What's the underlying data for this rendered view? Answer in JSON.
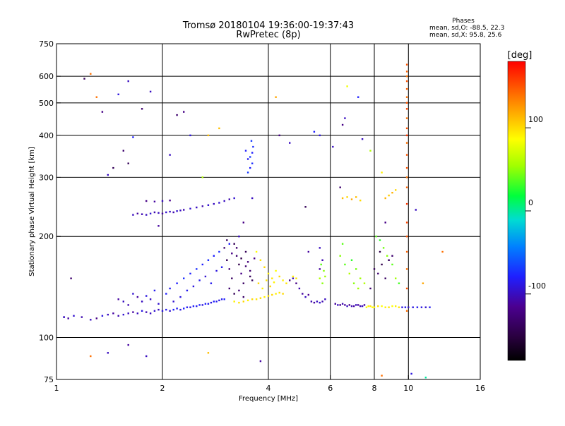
{
  "chart_data": {
    "type": "scatter",
    "title": "Tromsø 20180104 19:36:00-19:37:43",
    "subtitle": "RwPretec (8p)",
    "xlabel": "Frequency [MHz]",
    "ylabel": "Stationary phase Virtual Height [km]",
    "x_scale": "log",
    "y_scale": "log",
    "xlim": [
      1,
      16
    ],
    "ylim": [
      75,
      750
    ],
    "x_ticks": [
      1,
      2,
      4,
      6,
      8,
      10,
      16
    ],
    "x_tick_labels": [
      "1",
      "2",
      "4",
      "6",
      "8",
      "10",
      "16"
    ],
    "y_ticks": [
      75,
      100,
      200,
      300,
      400,
      500,
      600,
      750
    ],
    "y_tick_labels": [
      "75",
      "100",
      "200",
      "300",
      "400",
      "500",
      "600",
      "750"
    ],
    "x_gridlines": [
      2,
      4,
      6,
      8,
      10
    ],
    "y_gridlines": [
      100,
      200,
      300,
      400,
      500,
      600
    ],
    "stats": {
      "heading": "Phases",
      "line1": "mean, sd,O: -88.5, 22.3",
      "line2": "mean, sd,X:  95.8, 25.6"
    },
    "colorbar": {
      "title": "[deg]",
      "range": [
        -180,
        180
      ],
      "tick_values": [
        100,
        0,
        -100
      ],
      "tick_labels": [
        "100",
        "0",
        "-100"
      ]
    },
    "points": [
      [
        1.05,
        115,
        -100
      ],
      [
        1.08,
        114,
        -110
      ],
      [
        1.12,
        116,
        -95
      ],
      [
        1.18,
        115,
        -105
      ],
      [
        1.25,
        113,
        -100
      ],
      [
        1.3,
        114,
        -120
      ],
      [
        1.35,
        116,
        -90
      ],
      [
        1.4,
        117,
        -100
      ],
      [
        1.45,
        118,
        -110
      ],
      [
        1.5,
        116,
        -105
      ],
      [
        1.55,
        117,
        -95
      ],
      [
        1.6,
        118,
        -100
      ],
      [
        1.65,
        119,
        -110
      ],
      [
        1.7,
        118,
        -100
      ],
      [
        1.75,
        120,
        -90
      ],
      [
        1.8,
        119,
        -105
      ],
      [
        1.85,
        118,
        -100
      ],
      [
        1.9,
        120,
        -95
      ],
      [
        1.95,
        121,
        -100
      ],
      [
        2.0,
        120,
        -90
      ],
      [
        2.05,
        121,
        -85
      ],
      [
        2.1,
        120,
        -95
      ],
      [
        2.15,
        121,
        -80
      ],
      [
        2.2,
        122,
        -85
      ],
      [
        2.25,
        121,
        -90
      ],
      [
        2.3,
        122,
        -80
      ],
      [
        2.35,
        123,
        -85
      ],
      [
        2.4,
        123,
        -90
      ],
      [
        2.45,
        124,
        -80
      ],
      [
        2.5,
        124,
        -85
      ],
      [
        2.55,
        125,
        -80
      ],
      [
        2.6,
        125,
        -90
      ],
      [
        2.65,
        126,
        -80
      ],
      [
        2.7,
        126,
        -85
      ],
      [
        2.75,
        127,
        -90
      ],
      [
        2.8,
        128,
        -80
      ],
      [
        2.85,
        128,
        -85
      ],
      [
        2.9,
        129,
        -90
      ],
      [
        2.95,
        130,
        -85
      ],
      [
        3.0,
        130,
        -80
      ],
      [
        1.5,
        130,
        -110
      ],
      [
        1.55,
        128,
        -100
      ],
      [
        1.6,
        125,
        -105
      ],
      [
        1.65,
        135,
        -95
      ],
      [
        1.7,
        132,
        -110
      ],
      [
        1.75,
        128,
        -100
      ],
      [
        1.8,
        133,
        -90
      ],
      [
        1.85,
        130,
        -100
      ],
      [
        1.9,
        138,
        -85
      ],
      [
        1.95,
        126,
        -95
      ],
      [
        2.05,
        135,
        -80
      ],
      [
        2.1,
        140,
        -85
      ],
      [
        2.15,
        128,
        -95
      ],
      [
        2.2,
        145,
        -80
      ],
      [
        2.25,
        132,
        -90
      ],
      [
        2.3,
        150,
        -75
      ],
      [
        2.35,
        138,
        -85
      ],
      [
        2.4,
        155,
        -80
      ],
      [
        2.45,
        142,
        -90
      ],
      [
        2.5,
        160,
        -75
      ],
      [
        2.55,
        148,
        -85
      ],
      [
        2.6,
        165,
        -80
      ],
      [
        2.65,
        152,
        -95
      ],
      [
        2.7,
        170,
        -75
      ],
      [
        2.75,
        145,
        -85
      ],
      [
        2.8,
        175,
        -80
      ],
      [
        2.85,
        158,
        -90
      ],
      [
        2.9,
        180,
        -75
      ],
      [
        2.95,
        162,
        -85
      ],
      [
        3.0,
        185,
        -130
      ],
      [
        3.05,
        170,
        -140
      ],
      [
        3.1,
        160,
        -125
      ],
      [
        3.15,
        150,
        -135
      ],
      [
        3.2,
        190,
        -140
      ],
      [
        3.25,
        175,
        -130
      ],
      [
        3.3,
        165,
        -145
      ],
      [
        3.35,
        155,
        -120
      ],
      [
        3.4,
        145,
        -135
      ],
      [
        3.45,
        180,
        -140
      ],
      [
        3.5,
        168,
        -125
      ],
      [
        3.55,
        158,
        -130
      ],
      [
        3.6,
        148,
        -140
      ],
      [
        3.65,
        172,
        -120
      ],
      [
        3.1,
        140,
        -130
      ],
      [
        3.2,
        135,
        -140
      ],
      [
        3.3,
        138,
        -125
      ],
      [
        3.4,
        132,
        -135
      ],
      [
        3.05,
        195,
        -140
      ],
      [
        3.25,
        185,
        -130
      ],
      [
        3.15,
        178,
        -120
      ],
      [
        3.35,
        172,
        -145
      ],
      [
        3.45,
        163,
        -130
      ],
      [
        3.55,
        152,
        -140
      ],
      [
        3.2,
        128,
        90
      ],
      [
        3.3,
        127,
        95
      ],
      [
        3.4,
        128,
        100
      ],
      [
        3.5,
        129,
        90
      ],
      [
        3.6,
        130,
        100
      ],
      [
        3.7,
        130,
        95
      ],
      [
        3.8,
        131,
        100
      ],
      [
        3.9,
        132,
        90
      ],
      [
        4.0,
        133,
        95
      ],
      [
        4.1,
        134,
        100
      ],
      [
        4.2,
        135,
        90
      ],
      [
        4.3,
        136,
        95
      ],
      [
        4.4,
        135,
        100
      ],
      [
        3.7,
        180,
        85
      ],
      [
        3.8,
        170,
        95
      ],
      [
        3.9,
        162,
        100
      ],
      [
        4.0,
        155,
        90
      ],
      [
        4.1,
        150,
        95
      ],
      [
        4.2,
        158,
        85
      ],
      [
        4.3,
        152,
        100
      ],
      [
        4.4,
        148,
        90
      ],
      [
        4.5,
        145,
        95
      ],
      [
        4.6,
        148,
        100
      ],
      [
        4.7,
        152,
        90
      ],
      [
        4.8,
        150,
        95
      ],
      [
        3.75,
        145,
        100
      ],
      [
        3.85,
        140,
        90
      ],
      [
        3.95,
        148,
        95
      ],
      [
        4.05,
        142,
        100
      ],
      [
        4.15,
        146,
        90
      ],
      [
        4.6,
        148,
        -110
      ],
      [
        4.7,
        150,
        -100
      ],
      [
        4.8,
        145,
        -120
      ],
      [
        4.9,
        140,
        -105
      ],
      [
        5.0,
        135,
        -110
      ],
      [
        5.1,
        132,
        -100
      ],
      [
        5.2,
        134,
        -115
      ],
      [
        5.3,
        128,
        -105
      ],
      [
        5.4,
        127,
        -110
      ],
      [
        5.5,
        128,
        -100
      ],
      [
        5.6,
        127,
        -95
      ],
      [
        5.7,
        128,
        -105
      ],
      [
        5.8,
        130,
        -100
      ],
      [
        5.2,
        180,
        -110
      ],
      [
        5.6,
        185,
        -100
      ],
      [
        5.7,
        170,
        -105
      ],
      [
        5.6,
        160,
        -110
      ],
      [
        5.6,
        150,
        60
      ],
      [
        5.7,
        145,
        50
      ],
      [
        5.8,
        152,
        55
      ],
      [
        5.65,
        165,
        40
      ],
      [
        5.75,
        158,
        50
      ],
      [
        6.2,
        126,
        -110
      ],
      [
        6.3,
        125,
        -100
      ],
      [
        6.4,
        125,
        -120
      ],
      [
        6.5,
        126,
        -105
      ],
      [
        6.6,
        125,
        -110
      ],
      [
        6.7,
        124,
        -100
      ],
      [
        6.8,
        125,
        -115
      ],
      [
        6.9,
        124,
        -105
      ],
      [
        7.0,
        124,
        -110
      ],
      [
        7.1,
        125,
        -100
      ],
      [
        7.2,
        125,
        -110
      ],
      [
        7.3,
        124,
        -105
      ],
      [
        7.4,
        124,
        -100
      ],
      [
        7.5,
        125,
        -110
      ],
      [
        7.6,
        123,
        85
      ],
      [
        7.7,
        124,
        90
      ],
      [
        7.8,
        124,
        95
      ],
      [
        7.9,
        123,
        85
      ],
      [
        8.0,
        123,
        90
      ],
      [
        8.2,
        124,
        95
      ],
      [
        8.4,
        124,
        85
      ],
      [
        8.6,
        123,
        90
      ],
      [
        8.8,
        123,
        95
      ],
      [
        9.0,
        124,
        85
      ],
      [
        9.2,
        124,
        90
      ],
      [
        9.4,
        123,
        95
      ],
      [
        9.6,
        123,
        -90
      ],
      [
        9.8,
        123,
        -85
      ],
      [
        10.0,
        123,
        -95
      ],
      [
        10.3,
        123,
        -90
      ],
      [
        10.6,
        123,
        -85
      ],
      [
        10.9,
        123,
        -90
      ],
      [
        11.2,
        123,
        -95
      ],
      [
        11.5,
        123,
        -85
      ],
      [
        6.4,
        175,
        50
      ],
      [
        6.6,
        165,
        40
      ],
      [
        6.8,
        155,
        60
      ],
      [
        7.0,
        145,
        50
      ],
      [
        7.2,
        140,
        55
      ],
      [
        6.5,
        190,
        40
      ],
      [
        6.9,
        170,
        30
      ],
      [
        7.1,
        160,
        45
      ],
      [
        7.3,
        150,
        55
      ],
      [
        7.5,
        145,
        60
      ],
      [
        8.0,
        160,
        -140
      ],
      [
        8.2,
        155,
        -130
      ],
      [
        8.4,
        165,
        -145
      ],
      [
        8.6,
        150,
        -135
      ],
      [
        8.8,
        170,
        -140
      ],
      [
        9.0,
        175,
        -130
      ],
      [
        8.3,
        180,
        -145
      ],
      [
        7.8,
        140,
        -130
      ],
      [
        8.1,
        200,
        40
      ],
      [
        8.3,
        195,
        30
      ],
      [
        8.5,
        185,
        45
      ],
      [
        8.7,
        175,
        50
      ],
      [
        9.0,
        165,
        40
      ],
      [
        9.2,
        150,
        55
      ],
      [
        9.4,
        145,
        35
      ],
      [
        9.9,
        160,
        140
      ],
      [
        9.9,
        200,
        150
      ],
      [
        9.9,
        250,
        160
      ],
      [
        9.9,
        300,
        140
      ],
      [
        9.9,
        350,
        150
      ],
      [
        9.9,
        400,
        160
      ],
      [
        9.9,
        450,
        140
      ],
      [
        9.9,
        500,
        150
      ],
      [
        9.9,
        550,
        145
      ],
      [
        9.9,
        600,
        140
      ],
      [
        9.9,
        650,
        150
      ],
      [
        9.9,
        120,
        140
      ],
      [
        9.9,
        140,
        150
      ],
      [
        9.9,
        180,
        145
      ],
      [
        9.9,
        220,
        155
      ],
      [
        9.9,
        280,
        145
      ],
      [
        9.9,
        320,
        150
      ],
      [
        9.9,
        380,
        140
      ],
      [
        9.9,
        420,
        150
      ],
      [
        9.9,
        480,
        155
      ],
      [
        9.9,
        520,
        140
      ],
      [
        9.9,
        580,
        150
      ],
      [
        9.9,
        620,
        145
      ],
      [
        1.65,
        232,
        -100
      ],
      [
        1.7,
        234,
        -110
      ],
      [
        1.75,
        233,
        -105
      ],
      [
        1.8,
        232,
        -100
      ],
      [
        1.85,
        234,
        -95
      ],
      [
        1.9,
        236,
        -105
      ],
      [
        1.95,
        235,
        -100
      ],
      [
        2.0,
        234,
        -110
      ],
      [
        2.05,
        236,
        -95
      ],
      [
        2.1,
        237,
        -100
      ],
      [
        2.15,
        236,
        -105
      ],
      [
        2.2,
        238,
        -95
      ],
      [
        2.25,
        239,
        -100
      ],
      [
        2.3,
        240,
        -105
      ],
      [
        2.4,
        242,
        -95
      ],
      [
        2.5,
        244,
        -100
      ],
      [
        2.6,
        246,
        -105
      ],
      [
        2.7,
        248,
        -95
      ],
      [
        2.8,
        250,
        -100
      ],
      [
        2.9,
        252,
        -95
      ],
      [
        3.0,
        255,
        -100
      ],
      [
        3.1,
        258,
        -105
      ],
      [
        3.2,
        260,
        -95
      ],
      [
        1.8,
        255,
        -120
      ],
      [
        1.9,
        254,
        -110
      ],
      [
        2.0,
        255,
        -100
      ],
      [
        2.1,
        256,
        -115
      ],
      [
        3.5,
        310,
        -70
      ],
      [
        3.55,
        320,
        -80
      ],
      [
        3.6,
        330,
        -75
      ],
      [
        3.55,
        345,
        -70
      ],
      [
        3.6,
        355,
        -80
      ],
      [
        3.62,
        370,
        -75
      ],
      [
        3.58,
        385,
        -70
      ],
      [
        3.5,
        340,
        -85
      ],
      [
        3.45,
        360,
        -80
      ],
      [
        6.5,
        260,
        110
      ],
      [
        6.7,
        262,
        100
      ],
      [
        6.9,
        258,
        120
      ],
      [
        7.1,
        262,
        110
      ],
      [
        7.3,
        256,
        100
      ],
      [
        8.8,
        265,
        105
      ],
      [
        9.0,
        270,
        115
      ],
      [
        9.2,
        275,
        100
      ],
      [
        8.6,
        260,
        115
      ],
      [
        1.05,
        115,
        -100
      ],
      [
        1.1,
        150,
        -130
      ],
      [
        1.2,
        590,
        -140
      ],
      [
        1.25,
        610,
        140
      ],
      [
        1.3,
        520,
        140
      ],
      [
        1.35,
        470,
        -120
      ],
      [
        1.4,
        305,
        -100
      ],
      [
        1.45,
        320,
        -140
      ],
      [
        1.5,
        530,
        -90
      ],
      [
        1.55,
        360,
        -130
      ],
      [
        1.6,
        580,
        -100
      ],
      [
        1.6,
        330,
        -140
      ],
      [
        1.65,
        395,
        -80
      ],
      [
        1.75,
        480,
        -130
      ],
      [
        1.85,
        540,
        -100
      ],
      [
        1.95,
        215,
        -110
      ],
      [
        2.1,
        350,
        -100
      ],
      [
        2.2,
        460,
        -130
      ],
      [
        2.3,
        470,
        -120
      ],
      [
        2.4,
        400,
        -90
      ],
      [
        2.6,
        300,
        60
      ],
      [
        2.7,
        400,
        110
      ],
      [
        2.9,
        420,
        110
      ],
      [
        3.1,
        190,
        -80
      ],
      [
        3.3,
        200,
        -100
      ],
      [
        3.4,
        220,
        -120
      ],
      [
        3.6,
        260,
        -100
      ],
      [
        3.8,
        85,
        -110
      ],
      [
        4.2,
        520,
        120
      ],
      [
        4.3,
        400,
        -120
      ],
      [
        4.6,
        380,
        -100
      ],
      [
        5.1,
        245,
        -140
      ],
      [
        5.4,
        410,
        -80
      ],
      [
        5.6,
        400,
        -90
      ],
      [
        6.1,
        370,
        -100
      ],
      [
        6.4,
        280,
        -130
      ],
      [
        6.5,
        430,
        -120
      ],
      [
        6.6,
        450,
        -100
      ],
      [
        6.7,
        560,
        80
      ],
      [
        7.2,
        520,
        -80
      ],
      [
        7.4,
        390,
        -100
      ],
      [
        7.8,
        360,
        60
      ],
      [
        8.4,
        310,
        90
      ],
      [
        8.6,
        220,
        -120
      ],
      [
        10.5,
        240,
        -100
      ],
      [
        11.0,
        145,
        120
      ],
      [
        12.5,
        180,
        140
      ],
      [
        1.25,
        88,
        140
      ],
      [
        1.4,
        90,
        -100
      ],
      [
        1.6,
        95,
        -110
      ],
      [
        1.8,
        88,
        -100
      ],
      [
        2.7,
        90,
        110
      ],
      [
        8.4,
        77,
        140
      ],
      [
        10.2,
        78,
        -90
      ],
      [
        11.2,
        76,
        0
      ]
    ]
  }
}
